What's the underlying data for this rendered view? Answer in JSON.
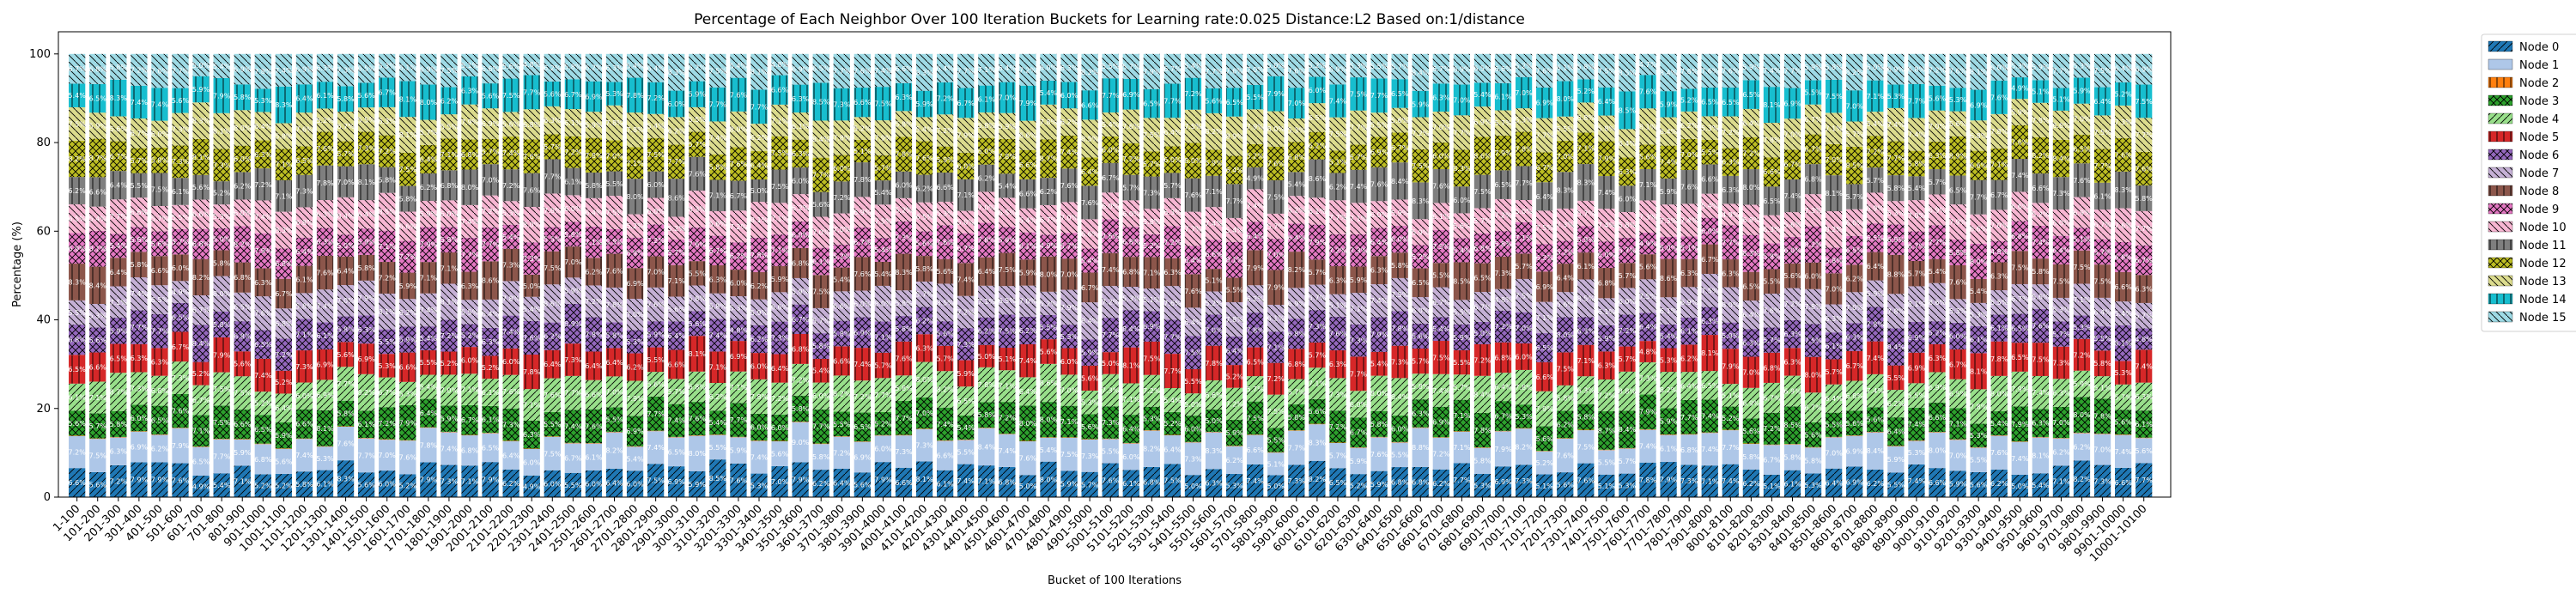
{
  "chart_data": {
    "type": "bar",
    "stacked": true,
    "title": "Percentage of Each Neighbor Over 100 Iteration Buckets for Learning rate:0.025 Distance:L2 Based on:1/distance",
    "xlabel": "Bucket of 100 Iterations",
    "ylabel": "Percentage (%)",
    "ylim": [
      0,
      105
    ],
    "yticks": [
      0,
      20,
      40,
      60,
      80,
      100
    ],
    "legend_position": "outside-top-right",
    "grid": false,
    "series_names": [
      "Node 0",
      "Node 1",
      "Node 2",
      "Node 3",
      "Node 4",
      "Node 5",
      "Node 6",
      "Node 7",
      "Node 8",
      "Node 9",
      "Node 10",
      "Node 11",
      "Node 12",
      "Node 13",
      "Node 14",
      "Node 15"
    ],
    "series_colors": [
      "#1f77b4",
      "#aec7e8",
      "#ff7f0e",
      "#2ca02c",
      "#98df8a",
      "#d62728",
      "#9467bd",
      "#c5b0d5",
      "#8c564b",
      "#e377c2",
      "#f7b6d2",
      "#7f7f7f",
      "#bcbd22",
      "#dbdb8d",
      "#17becf",
      "#9edae5"
    ],
    "series_hatch": [
      "/",
      "",
      "|",
      "x",
      "/",
      "|",
      "x",
      "\\",
      "|",
      "x",
      "\\",
      "|",
      "x",
      "\\",
      "|",
      "\\"
    ],
    "base_percentages": [
      6.2,
      6.6,
      0.1,
      6.5,
      6.6,
      6.3,
      6.4,
      6.5,
      6.6,
      6.2,
      6.4,
      6.5,
      6.8,
      6.6,
      6.4,
      6.3
    ],
    "categories_rule": "buckets of 100 iterations from 1-100 to 10001-10100 (every 100 shown below)",
    "categories": [
      "1-100",
      "101-200",
      "201-300",
      "301-400",
      "401-500",
      "501-600",
      "601-700",
      "701-800",
      "801-900",
      "901-1000",
      "1001-1100",
      "1101-1200",
      "1201-1300",
      "1301-1400",
      "1401-1500",
      "1501-1600",
      "1601-1700",
      "1701-1800",
      "1801-1900",
      "1901-2000",
      "2001-2100",
      "2101-2200",
      "2201-2300",
      "2301-2400",
      "2401-2500",
      "2501-2600",
      "2601-2700",
      "2701-2800",
      "2801-2900",
      "2901-3000",
      "3001-3100",
      "3101-3200",
      "3201-3300",
      "3301-3400",
      "3401-3500",
      "3501-3600",
      "3601-3700",
      "3701-3800",
      "3801-3900",
      "3901-4000",
      "4001-4100",
      "4101-4200",
      "4201-4300",
      "4301-4400",
      "4401-4500",
      "4501-4600",
      "4601-4700",
      "4701-4800",
      "4801-4900",
      "4901-5000",
      "5001-5100",
      "5101-5200",
      "5201-5300",
      "5301-5400",
      "5401-5500",
      "5501-5600",
      "5601-5700",
      "5701-5800",
      "5801-5900",
      "5901-6000",
      "6001-6100",
      "6101-6200",
      "6201-6300",
      "6301-6400",
      "6401-6500",
      "6501-6600",
      "6601-6700",
      "6701-6800",
      "6801-6900",
      "6901-7000",
      "7001-7100",
      "7101-7200",
      "7201-7300",
      "7301-7400",
      "7401-7500",
      "7501-7600",
      "7601-7700",
      "7701-7800",
      "7801-7900",
      "7901-8000",
      "8001-8100",
      "8101-8200",
      "8201-8300",
      "8301-8400",
      "8401-8500",
      "8501-8600",
      "8601-8700",
      "8701-8800",
      "8801-8900",
      "8901-9000",
      "9001-9100",
      "9101-9200",
      "9201-9300",
      "9301-9400",
      "9401-9500",
      "9501-9600",
      "9601-9700",
      "9701-9800",
      "9801-9900",
      "9901-10000",
      "10001-10100"
    ]
  }
}
